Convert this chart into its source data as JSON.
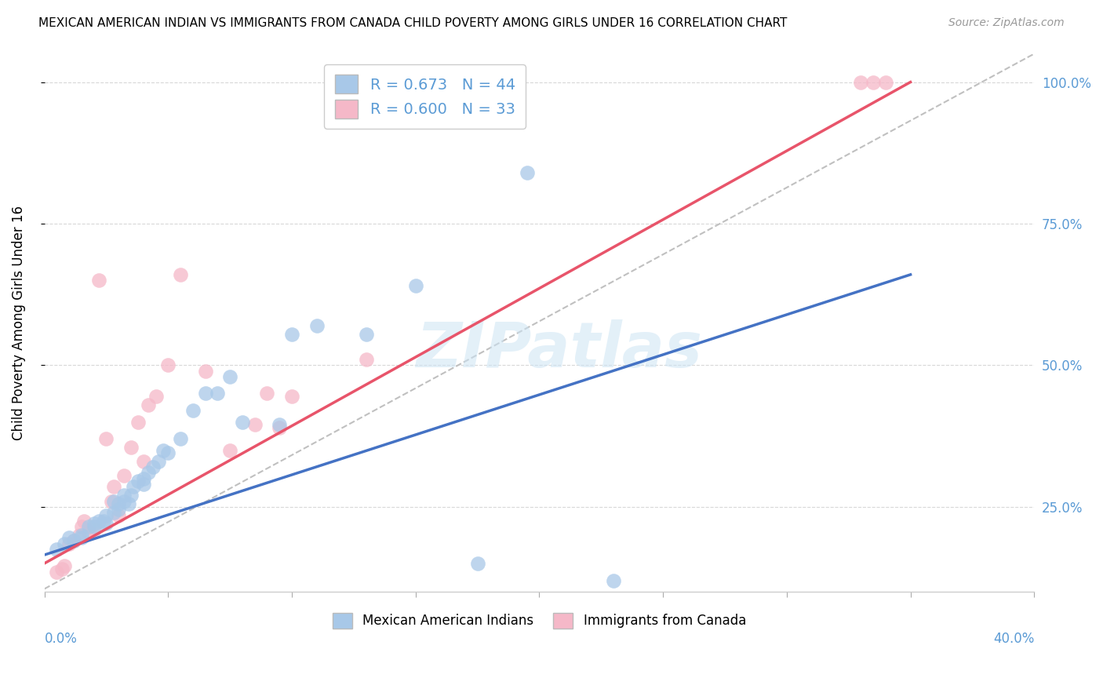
{
  "title": "MEXICAN AMERICAN INDIAN VS IMMIGRANTS FROM CANADA CHILD POVERTY AMONG GIRLS UNDER 16 CORRELATION CHART",
  "source": "Source: ZipAtlas.com",
  "ylabel": "Child Poverty Among Girls Under 16",
  "legend_label_blue": "Mexican American Indians",
  "legend_label_pink": "Immigrants from Canada",
  "R_blue": "0.673",
  "N_blue": "44",
  "R_pink": "0.600",
  "N_pink": "33",
  "blue_color": "#a8c8e8",
  "pink_color": "#f5b8c8",
  "blue_line_color": "#4472c4",
  "pink_line_color": "#e8546a",
  "diag_color": "#c0c0c0",
  "background_color": "#ffffff",
  "grid_color": "#d8d8d8",
  "right_tick_color": "#5b9bd5",
  "xlim": [
    0.0,
    0.4
  ],
  "ylim": [
    0.1,
    1.05
  ],
  "blue_scatter_x": [
    0.005,
    0.008,
    0.01,
    0.012,
    0.015,
    0.015,
    0.018,
    0.02,
    0.02,
    0.022,
    0.024,
    0.025,
    0.025,
    0.028,
    0.028,
    0.03,
    0.03,
    0.032,
    0.032,
    0.034,
    0.035,
    0.036,
    0.038,
    0.04,
    0.04,
    0.042,
    0.044,
    0.046,
    0.048,
    0.05,
    0.055,
    0.06,
    0.065,
    0.07,
    0.075,
    0.08,
    0.095,
    0.1,
    0.11,
    0.13,
    0.15,
    0.175,
    0.195,
    0.23
  ],
  "blue_scatter_y": [
    0.175,
    0.185,
    0.195,
    0.19,
    0.195,
    0.2,
    0.215,
    0.215,
    0.22,
    0.225,
    0.225,
    0.22,
    0.235,
    0.24,
    0.26,
    0.245,
    0.255,
    0.26,
    0.27,
    0.255,
    0.27,
    0.285,
    0.295,
    0.29,
    0.3,
    0.31,
    0.32,
    0.33,
    0.35,
    0.345,
    0.37,
    0.42,
    0.45,
    0.45,
    0.48,
    0.4,
    0.395,
    0.555,
    0.57,
    0.555,
    0.64,
    0.15,
    0.84,
    0.12
  ],
  "pink_scatter_x": [
    0.005,
    0.007,
    0.008,
    0.01,
    0.012,
    0.014,
    0.015,
    0.016,
    0.018,
    0.02,
    0.022,
    0.025,
    0.027,
    0.028,
    0.03,
    0.032,
    0.035,
    0.038,
    0.04,
    0.042,
    0.045,
    0.05,
    0.055,
    0.065,
    0.075,
    0.085,
    0.09,
    0.095,
    0.1,
    0.13,
    0.33,
    0.335,
    0.34
  ],
  "pink_scatter_y": [
    0.135,
    0.14,
    0.145,
    0.185,
    0.19,
    0.2,
    0.215,
    0.225,
    0.205,
    0.21,
    0.65,
    0.37,
    0.26,
    0.285,
    0.235,
    0.305,
    0.355,
    0.4,
    0.33,
    0.43,
    0.445,
    0.5,
    0.66,
    0.49,
    0.35,
    0.395,
    0.45,
    0.39,
    0.445,
    0.51,
    1.0,
    1.0,
    1.0
  ],
  "blue_line_x": [
    0.0,
    0.35
  ],
  "blue_line_y": [
    0.165,
    0.66
  ],
  "pink_line_x": [
    0.0,
    0.35
  ],
  "pink_line_y": [
    0.15,
    1.0
  ],
  "diag_line_x": [
    0.0,
    0.4
  ],
  "diag_line_y": [
    0.105,
    1.05
  ]
}
